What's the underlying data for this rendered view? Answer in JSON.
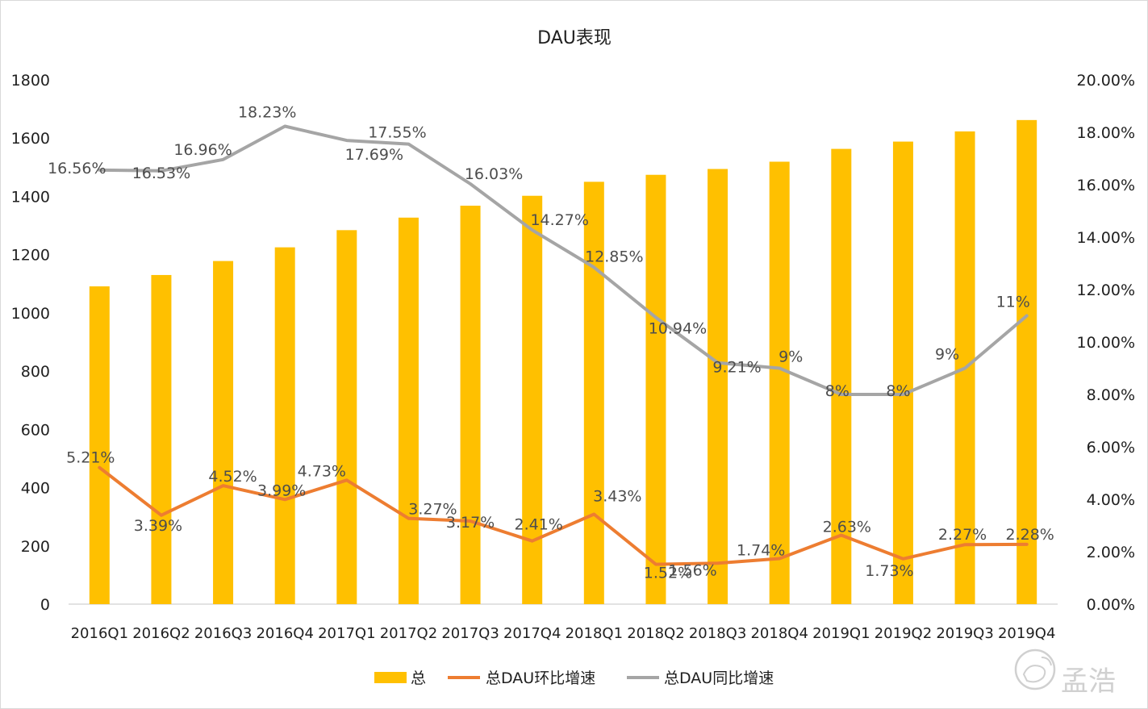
{
  "chart_data": {
    "type": "bar",
    "title": "DAU表现",
    "categories": [
      "2016Q1",
      "2016Q2",
      "2016Q3",
      "2016Q4",
      "2017Q1",
      "2017Q2",
      "2017Q3",
      "2017Q4",
      "2018Q1",
      "2018Q2",
      "2018Q3",
      "2018Q4",
      "2019Q1",
      "2019Q2",
      "2019Q3",
      "2019Q4"
    ],
    "y_left": {
      "ylim": [
        0,
        1800
      ],
      "ticks": [
        "0",
        "200",
        "400",
        "600",
        "800",
        "1000",
        "1200",
        "1400",
        "1600",
        "1800"
      ]
    },
    "y_right": {
      "ylim": [
        0,
        20
      ],
      "ticks": [
        "0.00%",
        "2.00%",
        "4.00%",
        "6.00%",
        "8.00%",
        "10.00%",
        "12.00%",
        "14.00%",
        "16.00%",
        "18.00%",
        "20.00%"
      ]
    },
    "series": [
      {
        "name": "总",
        "type": "bar",
        "axis": "left",
        "color": "#FFC000",
        "values": [
          1091,
          1130,
          1178,
          1225,
          1284,
          1327,
          1368,
          1402,
          1450,
          1474,
          1494,
          1519,
          1563,
          1588,
          1623,
          1662
        ]
      },
      {
        "name": "总DAU环比增速",
        "type": "line",
        "axis": "right",
        "color": "#ED7D31",
        "values": [
          5.21,
          3.39,
          4.52,
          3.99,
          4.73,
          3.27,
          3.17,
          2.41,
          3.43,
          1.52,
          1.56,
          1.74,
          2.63,
          1.73,
          2.27,
          2.28
        ],
        "labels": [
          "5.21%",
          "3.39%",
          "4.52%",
          "3.99%",
          "4.73%",
          "3.27%",
          "3.17%",
          "2.41%",
          "3.43%",
          "1.52%",
          "1.56%",
          "1.74%",
          "2.63%",
          "1.73%",
          "2.27%",
          "2.28%"
        ]
      },
      {
        "name": "总DAU同比增速",
        "type": "line",
        "axis": "right",
        "color": "#A5A5A5",
        "values": [
          16.56,
          16.53,
          16.96,
          18.23,
          17.69,
          17.55,
          16.03,
          14.27,
          12.85,
          10.94,
          9.21,
          9,
          8,
          8,
          9,
          11
        ],
        "labels": [
          "16.56%",
          "16.53%",
          "16.96%",
          "18.23%",
          "17.69%",
          "17.55%",
          "16.03%",
          "14.27%",
          "12.85%",
          "10.94%",
          "9.21%",
          "9%",
          "8%",
          "8%",
          "9%",
          "11%"
        ]
      }
    ],
    "legend": "bottom",
    "grid": false
  },
  "watermark": {
    "text": "孟浩",
    "icon": "weibo-logo-icon"
  }
}
